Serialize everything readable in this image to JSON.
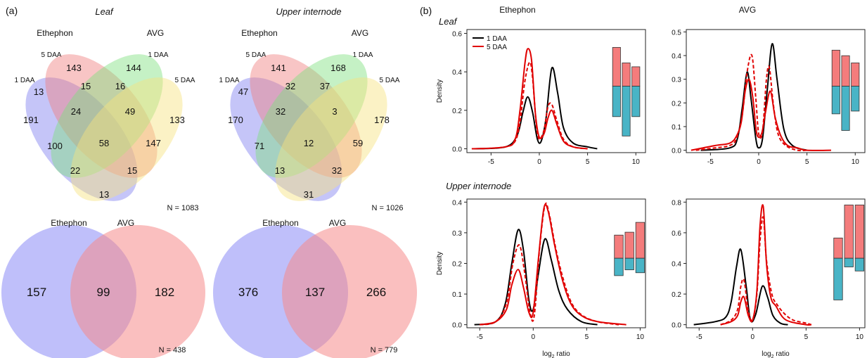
{
  "panel_labels": {
    "a": "(a)",
    "b": "(b)"
  },
  "tissues": {
    "leaf": "Leaf",
    "internode": "Upper internode"
  },
  "treatments": {
    "ethephon": "Ethephon",
    "avg": "AVG"
  },
  "timepoints": {
    "d1": "1 DAA",
    "d5": "5 DAA"
  },
  "colors": {
    "venn_eth1": "#7f7ff0",
    "venn_eth5": "#f07f7f",
    "venn_avg1": "#7fe07f",
    "venn_avg5": "#f7e27f",
    "venn2_eth": "#8a8af5",
    "venn2_avg": "#f58a8a",
    "curve_1daa": "#000000",
    "curve_5daa": "#e00000",
    "bar_up": "#f47c7c",
    "bar_down": "#49b4c6"
  },
  "chart_data": [
    {
      "type": "venn4",
      "panel": "(a)",
      "title": "Leaf",
      "group_labels": [
        "Ethephon",
        "AVG"
      ],
      "set_labels": [
        "1 DAA",
        "5 DAA",
        "1 DAA",
        "5 DAA"
      ],
      "regions": [
        "191",
        "143",
        "144",
        "133",
        "13",
        "15",
        "16",
        "24",
        "49",
        "100",
        "58",
        "147",
        "22",
        "15",
        "13"
      ],
      "total": "N = 1083"
    },
    {
      "type": "venn4",
      "panel": "(a)",
      "title": "Upper internode",
      "group_labels": [
        "Ethephon",
        "AVG"
      ],
      "set_labels": [
        "1 DAA",
        "5 DAA",
        "1 DAA",
        "5 DAA"
      ],
      "regions": [
        "170",
        "141",
        "168",
        "178",
        "47",
        "32",
        "37",
        "32",
        "3",
        "71",
        "12",
        "59",
        "13",
        "32",
        "31"
      ],
      "total": "N = 1026"
    },
    {
      "type": "venn2",
      "panel": "(a)",
      "title": "Leaf",
      "set_labels": [
        "Ethephon",
        "AVG"
      ],
      "regions": [
        "157",
        "99",
        "182"
      ],
      "total": "N = 438"
    },
    {
      "type": "venn2",
      "panel": "(a)",
      "title": "Upper internode",
      "set_labels": [
        "Ethephon",
        "AVG"
      ],
      "regions": [
        "376",
        "137",
        "266"
      ],
      "total": "N = 779"
    },
    {
      "type": "line",
      "panel": "(b)",
      "tissue": "Leaf",
      "title": "Ethephon",
      "xlabel": "",
      "ylabel": "Density",
      "xlim": [
        -7.5,
        11
      ],
      "ylim": [
        -0.02,
        0.62
      ],
      "xticks": [
        -5,
        0,
        5,
        10
      ],
      "yticks": [
        0.0,
        0.2,
        0.4,
        0.6
      ],
      "ytick_labels": [
        "0.0",
        "0.2",
        "0.4",
        "0.6"
      ],
      "legend": {
        "position": "top-left",
        "entries": [
          "1 DAA",
          "5 DAA"
        ]
      },
      "series": [
        {
          "name": "1 DAA",
          "style": "solid",
          "color": "#000000",
          "x": [
            -6.9,
            -3.5,
            -2.3,
            -1.7,
            -1.2,
            -0.7,
            -0.2,
            0.2,
            0.7,
            1.3,
            1.9,
            2.5,
            3.5,
            5,
            6
          ],
          "y": [
            0.0,
            0.01,
            0.07,
            0.19,
            0.27,
            0.19,
            0.05,
            0.04,
            0.16,
            0.42,
            0.29,
            0.11,
            0.03,
            0.01,
            0.0
          ]
        },
        {
          "name": "5 DAA",
          "style": "solid",
          "color": "#e00000",
          "x": [
            -7,
            -3.5,
            -2.5,
            -2,
            -1.5,
            -1.2,
            -0.8,
            -0.4,
            0,
            0.5,
            0.9,
            1.3,
            1.8,
            2.5,
            3.5,
            5
          ],
          "y": [
            0.0,
            0.01,
            0.05,
            0.2,
            0.44,
            0.52,
            0.46,
            0.18,
            0.06,
            0.08,
            0.16,
            0.2,
            0.13,
            0.04,
            0.01,
            0.0
          ]
        },
        {
          "name": "5 DAA (dashed)",
          "style": "dashed",
          "color": "#e00000",
          "x": [
            -6,
            -3.5,
            -2.5,
            -2,
            -1.5,
            -1,
            -0.7,
            -0.3,
            0,
            0.5,
            0.9,
            1.3,
            1.8,
            2.5,
            3.5,
            5
          ],
          "y": [
            0.0,
            0.01,
            0.04,
            0.14,
            0.35,
            0.45,
            0.37,
            0.12,
            0.05,
            0.1,
            0.22,
            0.23,
            0.15,
            0.05,
            0.01,
            0.0
          ]
        }
      ],
      "bars": [
        {
          "x": 8,
          "up": 0.7,
          "down": 0.55
        },
        {
          "x": 9,
          "up": 0.42,
          "down": 0.9
        },
        {
          "x": 10,
          "up": 0.35,
          "down": 0.55
        }
      ]
    },
    {
      "type": "line",
      "panel": "(b)",
      "tissue": "Leaf",
      "title": "AVG",
      "xlabel": "",
      "ylabel": "",
      "xlim": [
        -7.5,
        11
      ],
      "ylim": [
        -0.01,
        0.51
      ],
      "xticks": [
        -5,
        0,
        5,
        10
      ],
      "yticks": [
        0.0,
        0.1,
        0.2,
        0.3,
        0.4,
        0.5
      ],
      "ytick_labels": [
        "0.0",
        "0.1",
        "0.2",
        "0.3",
        "0.4",
        "0.5"
      ],
      "series": [
        {
          "name": "1 DAA",
          "style": "solid",
          "color": "#000000",
          "x": [
            -6,
            -3,
            -2.2,
            -1.7,
            -1.2,
            -0.8,
            -0.3,
            0,
            0.4,
            0.9,
            1.4,
            1.9,
            2.6,
            3.5,
            5
          ],
          "y": [
            0.0,
            0.01,
            0.05,
            0.18,
            0.33,
            0.22,
            0.05,
            0.01,
            0.05,
            0.26,
            0.45,
            0.3,
            0.09,
            0.02,
            0.0
          ]
        },
        {
          "name": "5 DAA",
          "style": "solid",
          "color": "#e00000",
          "x": [
            -7,
            -4.5,
            -3,
            -2.3,
            -1.8,
            -1.4,
            -1,
            -0.6,
            -0.2,
            0.3,
            0.7,
            1.2,
            1.7,
            2.3,
            3,
            4,
            5,
            7.5
          ],
          "y": [
            0.0,
            0.02,
            0.03,
            0.06,
            0.12,
            0.25,
            0.3,
            0.22,
            0.07,
            0.07,
            0.16,
            0.25,
            0.14,
            0.06,
            0.02,
            0.01,
            0.0,
            0.0
          ]
        },
        {
          "name": "5 DAA (dashed)",
          "style": "dashed",
          "color": "#e00000",
          "x": [
            -6.5,
            -4.5,
            -3,
            -2.3,
            -1.7,
            -1.2,
            -0.7,
            -0.3,
            0,
            0.4,
            0.8,
            1.1,
            1.5,
            2,
            2.8,
            4,
            5
          ],
          "y": [
            0.0,
            0.01,
            0.02,
            0.05,
            0.15,
            0.33,
            0.4,
            0.22,
            0.07,
            0.08,
            0.3,
            0.35,
            0.2,
            0.07,
            0.02,
            0.0,
            0.0
          ]
        }
      ],
      "bars": [
        {
          "x": 8,
          "up": 0.65,
          "down": 0.5
        },
        {
          "x": 9,
          "up": 0.55,
          "down": 0.8
        },
        {
          "x": 10,
          "up": 0.42,
          "down": 0.45
        }
      ]
    },
    {
      "type": "line",
      "panel": "(b)",
      "tissue": "Upper internode",
      "title": "Ethephon",
      "xlabel": "log2 ratio",
      "ylabel": "Density",
      "xlim": [
        -6.2,
        10.5
      ],
      "ylim": [
        -0.01,
        0.41
      ],
      "xticks": [
        -5,
        0,
        5,
        10
      ],
      "yticks": [
        0.0,
        0.1,
        0.2,
        0.3,
        0.4
      ],
      "ytick_labels": [
        "0.0",
        "0.1",
        "0.2",
        "0.3",
        "0.4"
      ],
      "series": [
        {
          "name": "1 DAA",
          "style": "solid",
          "color": "#000000",
          "x": [
            -5.5,
            -3.5,
            -2.6,
            -2,
            -1.4,
            -0.9,
            -0.4,
            0,
            0.5,
            1.1,
            1.7,
            2.4,
            3.2,
            4.5,
            6
          ],
          "y": [
            0.0,
            0.01,
            0.07,
            0.2,
            0.31,
            0.24,
            0.08,
            0.05,
            0.17,
            0.28,
            0.21,
            0.11,
            0.05,
            0.01,
            0.0
          ]
        },
        {
          "name": "5 DAA",
          "style": "solid",
          "color": "#e00000",
          "x": [
            -5,
            -3.5,
            -2.5,
            -2,
            -1.4,
            -0.9,
            -0.4,
            0,
            0.5,
            1,
            1.4,
            2,
            2.7,
            3.5,
            4.5,
            6,
            8.7
          ],
          "y": [
            0.0,
            0.01,
            0.05,
            0.13,
            0.18,
            0.12,
            0.04,
            0.04,
            0.22,
            0.38,
            0.37,
            0.26,
            0.15,
            0.07,
            0.03,
            0.01,
            0.0
          ]
        },
        {
          "name": "5 DAA (dashed)",
          "style": "dashed",
          "color": "#e00000",
          "x": [
            -5,
            -3.5,
            -2.5,
            -1.9,
            -1.3,
            -0.8,
            -0.3,
            0.1,
            0.6,
            1.1,
            1.5,
            2.1,
            2.8,
            3.6,
            4.6,
            6,
            8
          ],
          "y": [
            0.0,
            0.01,
            0.07,
            0.2,
            0.26,
            0.17,
            0.04,
            0.03,
            0.25,
            0.39,
            0.36,
            0.25,
            0.15,
            0.07,
            0.03,
            0.01,
            0.0
          ]
        }
      ],
      "bars": [
        {
          "x": 8,
          "up": 0.4,
          "down": 0.3
        },
        {
          "x": 9,
          "up": 0.45,
          "down": 0.2
        },
        {
          "x": 10,
          "up": 0.62,
          "down": 0.25
        }
      ]
    },
    {
      "type": "line",
      "panel": "(b)",
      "tissue": "Upper internode",
      "title": "AVG",
      "xlabel": "log2 ratio",
      "ylabel": "",
      "xlim": [
        -6.2,
        10.5
      ],
      "ylim": [
        -0.02,
        0.82
      ],
      "xticks": [
        -5,
        0,
        5,
        10
      ],
      "yticks": [
        0.0,
        0.2,
        0.4,
        0.6,
        0.8
      ],
      "ytick_labels": [
        "0.0",
        "0.2",
        "0.4",
        "0.6",
        "0.8"
      ],
      "series": [
        {
          "name": "1 DAA",
          "style": "solid",
          "color": "#000000",
          "x": [
            -5.5,
            -3.5,
            -2.5,
            -2,
            -1.5,
            -1.1,
            -0.6,
            -0.2,
            0.3,
            0.9,
            1.4,
            1.9,
            2.6,
            3.3
          ],
          "y": [
            0.0,
            0.02,
            0.05,
            0.15,
            0.38,
            0.49,
            0.25,
            0.03,
            0.07,
            0.25,
            0.18,
            0.06,
            0.01,
            0.0
          ]
        },
        {
          "name": "5 DAA",
          "style": "solid",
          "color": "#e00000",
          "x": [
            -3,
            -2,
            -1.4,
            -1.1,
            -0.8,
            -0.4,
            0,
            0.4,
            0.7,
            1,
            1.3,
            1.7,
            2.2,
            2.8,
            3.5,
            5,
            5.5
          ],
          "y": [
            0.0,
            0.02,
            0.06,
            0.15,
            0.18,
            0.06,
            0.03,
            0.22,
            0.65,
            0.77,
            0.4,
            0.18,
            0.12,
            0.05,
            0.02,
            0.0,
            0.0
          ]
        },
        {
          "name": "5 DAA (dashed)",
          "style": "dashed",
          "color": "#e00000",
          "x": [
            -3,
            -2,
            -1.4,
            -1.1,
            -0.8,
            -0.4,
            0,
            0.4,
            0.7,
            1,
            1.3,
            1.8,
            2.3,
            3,
            3.8,
            5,
            5.5
          ],
          "y": [
            0.0,
            0.03,
            0.1,
            0.25,
            0.29,
            0.09,
            0.03,
            0.2,
            0.55,
            0.7,
            0.42,
            0.2,
            0.13,
            0.07,
            0.03,
            0.01,
            0.0
          ]
        }
      ],
      "bars": [
        {
          "x": 8,
          "up": 0.35,
          "down": 0.72
        },
        {
          "x": 9,
          "up": 0.92,
          "down": 0.15
        },
        {
          "x": 10,
          "up": 0.92,
          "down": 0.22
        }
      ]
    }
  ]
}
